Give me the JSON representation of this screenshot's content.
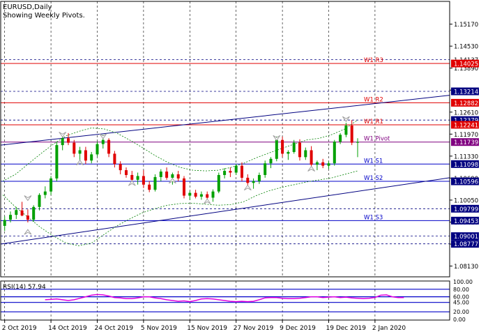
{
  "window": {
    "symbol_title": "EURUSD,Daily",
    "indicator_note": "Showing Weekly Pivots."
  },
  "colors": {
    "background": "#ffffff",
    "frame": "#000000",
    "grid": "#000000",
    "bull_candle": "#00a000",
    "bear_candle": "#e00000",
    "resistance_line": "#e00000",
    "support_line": "#0000c8",
    "pivot_line": "#800080",
    "trend_channel": "#000080",
    "envelope": "#008000",
    "fractal_arrow": "#a0a0a0",
    "rsi_line": "#e000e0",
    "rsi_level": "#0000c8",
    "price_tag_red": "#e00000",
    "price_tag_navy": "#000080"
  },
  "chart_data": {
    "type": "candlestick",
    "ylim": [
      1.07817,
      1.15832
    ],
    "price_axis_ticks": [
      "1.15170",
      "1.14530",
      "1.13890",
      "1.13250",
      "1.12610",
      "1.11970",
      "1.11330",
      "1.10690",
      "1.10050",
      "1.09410",
      "1.08770",
      "1.08130"
    ],
    "time_axis_labels": [
      {
        "label": "2 Oct 2019",
        "index": 0
      },
      {
        "label": "14 Oct 2019",
        "index": 8
      },
      {
        "label": "24 Oct 2019",
        "index": 16
      },
      {
        "label": "5 Nov 2019",
        "index": 24
      },
      {
        "label": "15 Nov 2019",
        "index": 32
      },
      {
        "label": "27 Nov 2019",
        "index": 40
      },
      {
        "label": "9 Dec 2019",
        "index": 48
      },
      {
        "label": "19 Dec 2019",
        "index": 56
      },
      {
        "label": "2 Jan 2020",
        "index": 64
      }
    ],
    "candles": [
      {
        "o": 1.093,
        "h": 1.0958,
        "l": 1.0915,
        "c": 1.0947
      },
      {
        "o": 1.0948,
        "h": 1.0972,
        "l": 1.094,
        "c": 1.0962
      },
      {
        "o": 1.0962,
        "h": 1.0985,
        "l": 1.095,
        "c": 1.0976
      },
      {
        "o": 1.0975,
        "h": 1.1,
        "l": 1.0958,
        "c": 1.096
      },
      {
        "o": 1.096,
        "h": 1.0978,
        "l": 1.094,
        "c": 1.0948
      },
      {
        "o": 1.0948,
        "h": 1.099,
        "l": 1.0942,
        "c": 1.0985
      },
      {
        "o": 1.0985,
        "h": 1.1025,
        "l": 1.0975,
        "c": 1.102
      },
      {
        "o": 1.102,
        "h": 1.1045,
        "l": 1.101,
        "c": 1.103
      },
      {
        "o": 1.103,
        "h": 1.1075,
        "l": 1.102,
        "c": 1.1068
      },
      {
        "o": 1.1068,
        "h": 1.1175,
        "l": 1.106,
        "c": 1.1165
      },
      {
        "o": 1.1165,
        "h": 1.1195,
        "l": 1.115,
        "c": 1.1185
      },
      {
        "o": 1.1185,
        "h": 1.12,
        "l": 1.1165,
        "c": 1.1172
      },
      {
        "o": 1.1172,
        "h": 1.118,
        "l": 1.113,
        "c": 1.114
      },
      {
        "o": 1.114,
        "h": 1.116,
        "l": 1.1118,
        "c": 1.115
      },
      {
        "o": 1.115,
        "h": 1.116,
        "l": 1.111,
        "c": 1.112
      },
      {
        "o": 1.112,
        "h": 1.1145,
        "l": 1.1112,
        "c": 1.1138
      },
      {
        "o": 1.1138,
        "h": 1.1175,
        "l": 1.1132,
        "c": 1.1168
      },
      {
        "o": 1.1168,
        "h": 1.1195,
        "l": 1.1155,
        "c": 1.118
      },
      {
        "o": 1.118,
        "h": 1.1185,
        "l": 1.113,
        "c": 1.114
      },
      {
        "o": 1.114,
        "h": 1.1148,
        "l": 1.11,
        "c": 1.111
      },
      {
        "o": 1.111,
        "h": 1.1118,
        "l": 1.108,
        "c": 1.1092
      },
      {
        "o": 1.1092,
        "h": 1.11,
        "l": 1.107,
        "c": 1.1078
      },
      {
        "o": 1.1078,
        "h": 1.109,
        "l": 1.1058,
        "c": 1.1064
      },
      {
        "o": 1.1064,
        "h": 1.1085,
        "l": 1.105,
        "c": 1.1075
      },
      {
        "o": 1.1075,
        "h": 1.1092,
        "l": 1.104,
        "c": 1.105
      },
      {
        "o": 1.105,
        "h": 1.106,
        "l": 1.1028,
        "c": 1.1035
      },
      {
        "o": 1.1035,
        "h": 1.108,
        "l": 1.103,
        "c": 1.1072
      },
      {
        "o": 1.1072,
        "h": 1.1095,
        "l": 1.106,
        "c": 1.1088
      },
      {
        "o": 1.1088,
        "h": 1.11,
        "l": 1.1064,
        "c": 1.107
      },
      {
        "o": 1.107,
        "h": 1.1085,
        "l": 1.105,
        "c": 1.108
      },
      {
        "o": 1.108,
        "h": 1.109,
        "l": 1.106,
        "c": 1.1068
      },
      {
        "o": 1.1068,
        "h": 1.1075,
        "l": 1.101,
        "c": 1.1018
      },
      {
        "o": 1.1018,
        "h": 1.1032,
        "l": 1.1005,
        "c": 1.1026
      },
      {
        "o": 1.1026,
        "h": 1.1035,
        "l": 1.101,
        "c": 1.1015
      },
      {
        "o": 1.1015,
        "h": 1.103,
        "l": 1.1006,
        "c": 1.1022
      },
      {
        "o": 1.1022,
        "h": 1.103,
        "l": 1.1008,
        "c": 1.1012
      },
      {
        "o": 1.1012,
        "h": 1.1036,
        "l": 1.1,
        "c": 1.103
      },
      {
        "o": 1.103,
        "h": 1.1085,
        "l": 1.1025,
        "c": 1.1078
      },
      {
        "o": 1.1078,
        "h": 1.1098,
        "l": 1.1068,
        "c": 1.109
      },
      {
        "o": 1.109,
        "h": 1.11,
        "l": 1.1072,
        "c": 1.1085
      },
      {
        "o": 1.1085,
        "h": 1.111,
        "l": 1.1078,
        "c": 1.1105
      },
      {
        "o": 1.1105,
        "h": 1.1115,
        "l": 1.106,
        "c": 1.107
      },
      {
        "o": 1.107,
        "h": 1.108,
        "l": 1.1045,
        "c": 1.1055
      },
      {
        "o": 1.1055,
        "h": 1.1068,
        "l": 1.1038,
        "c": 1.106
      },
      {
        "o": 1.106,
        "h": 1.1085,
        "l": 1.1052,
        "c": 1.1078
      },
      {
        "o": 1.1078,
        "h": 1.112,
        "l": 1.107,
        "c": 1.1112
      },
      {
        "o": 1.1112,
        "h": 1.113,
        "l": 1.1098,
        "c": 1.1125
      },
      {
        "o": 1.1125,
        "h": 1.119,
        "l": 1.1118,
        "c": 1.118
      },
      {
        "o": 1.118,
        "h": 1.119,
        "l": 1.113,
        "c": 1.114
      },
      {
        "o": 1.114,
        "h": 1.115,
        "l": 1.1122,
        "c": 1.1145
      },
      {
        "o": 1.1145,
        "h": 1.118,
        "l": 1.114,
        "c": 1.1172
      },
      {
        "o": 1.1172,
        "h": 1.1182,
        "l": 1.112,
        "c": 1.113
      },
      {
        "o": 1.113,
        "h": 1.1158,
        "l": 1.1122,
        "c": 1.115
      },
      {
        "o": 1.115,
        "h": 1.1162,
        "l": 1.11,
        "c": 1.1108
      },
      {
        "o": 1.1108,
        "h": 1.112,
        "l": 1.1092,
        "c": 1.1115
      },
      {
        "o": 1.1115,
        "h": 1.1125,
        "l": 1.1098,
        "c": 1.1105
      },
      {
        "o": 1.1105,
        "h": 1.1118,
        "l": 1.1096,
        "c": 1.1112
      },
      {
        "o": 1.1112,
        "h": 1.118,
        "l": 1.1105,
        "c": 1.1175
      },
      {
        "o": 1.1175,
        "h": 1.12,
        "l": 1.1168,
        "c": 1.1195
      },
      {
        "o": 1.1195,
        "h": 1.123,
        "l": 1.1188,
        "c": 1.1222
      },
      {
        "o": 1.1222,
        "h": 1.1238,
        "l": 1.1165,
        "c": 1.1172
      },
      {
        "o": 1.1172,
        "h": 1.1185,
        "l": 1.113,
        "c": 1.1174
      }
    ],
    "envelope_upper": [
      1.106,
      1.108,
      1.111,
      1.114,
      1.1168,
      1.1192,
      1.1205,
      1.1215,
      1.1212,
      1.12,
      1.118,
      1.1158,
      1.1135,
      1.1115,
      1.11,
      1.1092,
      1.109,
      1.1092,
      1.11,
      1.1112,
      1.1128,
      1.1142,
      1.1155,
      1.1168,
      1.118,
      1.1185,
      1.1196,
      1.1212,
      1.1238
    ],
    "envelope_lower": [
      1.102,
      1.0985,
      1.0955,
      1.0925,
      1.09,
      1.088,
      1.0872,
      1.088,
      1.0905,
      1.093,
      1.095,
      1.0968,
      1.098,
      1.099,
      1.0995,
      1.0996,
      1.0993,
      1.099,
      1.0992,
      1.1,
      1.1018,
      1.1032,
      1.1042,
      1.105,
      1.1058,
      1.1064,
      1.107,
      1.108,
      1.109
    ],
    "trend_channel": [
      {
        "from": [
          1.1165,
          0
        ],
        "to": [
          1.131,
          69
        ]
      },
      {
        "from": [
          1.0877,
          0
        ],
        "to": [
          1.107,
          69
        ]
      }
    ],
    "fractals_up": [
      {
        "index": 4,
        "price": 1.102
      },
      {
        "index": 10,
        "price": 1.1205
      },
      {
        "index": 17,
        "price": 1.12
      },
      {
        "index": 47,
        "price": 1.1195
      },
      {
        "index": 59,
        "price": 1.125
      }
    ],
    "fractals_down": [
      {
        "index": 4,
        "price": 1.0903
      },
      {
        "index": 13,
        "price": 1.1105
      },
      {
        "index": 22,
        "price": 1.1045
      },
      {
        "index": 29,
        "price": 1.1052
      },
      {
        "index": 35,
        "price": 1.0992
      },
      {
        "index": 42,
        "price": 1.1032
      },
      {
        "index": 53,
        "price": 1.1087
      }
    ]
  },
  "pivots": [
    {
      "label": "W1 R3",
      "price": 1.14025,
      "kind": "resistance"
    },
    {
      "label": "W1 R2",
      "price": 1.12882,
      "kind": "resistance"
    },
    {
      "label": "W1 R1",
      "price": 1.12241,
      "kind": "resistance"
    },
    {
      "label": "W1 Pivot",
      "price": 1.11739,
      "kind": "pivot"
    },
    {
      "label": "W1 S1",
      "price": 1.11098,
      "kind": "support"
    },
    {
      "label": "W1 S2",
      "price": 1.10596,
      "kind": "support"
    },
    {
      "label": "W1 S3",
      "price": 1.09453,
      "kind": "support"
    }
  ],
  "dashed_levels": [
    1.14137,
    1.13214,
    1.12379,
    1.09799,
    1.09001,
    1.08777
  ],
  "price_tags": [
    {
      "text": "1.14137",
      "price": 1.14137,
      "color": "#ffffff",
      "tag": "none"
    },
    {
      "text": "1.14025",
      "price": 1.14025,
      "color": "#ffffff",
      "tag": "#e00000"
    },
    {
      "text": "1.13214",
      "price": 1.13214,
      "color": "#ffffff",
      "tag": "#000080"
    },
    {
      "text": "1.12882",
      "price": 1.12882,
      "color": "#ffffff",
      "tag": "#e00000"
    },
    {
      "text": "1.12379",
      "price": 1.12379,
      "color": "#ffffff",
      "tag": "#000080"
    },
    {
      "text": "1.12241",
      "price": 1.12241,
      "color": "#ffffff",
      "tag": "#e00000"
    },
    {
      "text": "1.11739",
      "price": 1.11739,
      "color": "#ffffff",
      "tag": "#800080"
    },
    {
      "text": "1.11098",
      "price": 1.11098,
      "color": "#ffffff",
      "tag": "#000080"
    },
    {
      "text": "1.10596",
      "price": 1.10596,
      "color": "#ffffff",
      "tag": "#000080"
    },
    {
      "text": "1.09799",
      "price": 1.09799,
      "color": "#ffffff",
      "tag": "#000080"
    },
    {
      "text": "1.09453",
      "price": 1.09453,
      "color": "#ffffff",
      "tag": "#000080"
    },
    {
      "text": "1.09001",
      "price": 1.09001,
      "color": "#ffffff",
      "tag": "#000080"
    },
    {
      "text": "1.08777",
      "price": 1.08777,
      "color": "#ffffff",
      "tag": "#000080"
    }
  ],
  "rsi": {
    "label": "RSI(14) 57.94",
    "ticks": [
      "100.00",
      "80.00",
      "60.00",
      "45.00",
      "20.00",
      "0.00"
    ],
    "levels": [
      80,
      60,
      45,
      20
    ],
    "values": [
      52,
      53,
      54,
      52,
      50,
      52,
      56,
      60,
      64,
      66,
      65,
      62,
      58,
      57,
      55,
      55,
      57,
      60,
      60,
      57,
      55,
      52,
      50,
      48,
      49,
      47,
      50,
      54,
      55,
      54,
      52,
      50,
      48,
      47,
      48,
      47,
      48,
      52,
      57,
      58,
      58,
      56,
      55,
      55,
      56,
      58,
      60,
      60,
      58,
      59,
      60,
      58,
      59,
      57,
      56,
      55,
      56,
      58,
      64,
      65,
      60,
      58,
      58
    ]
  }
}
